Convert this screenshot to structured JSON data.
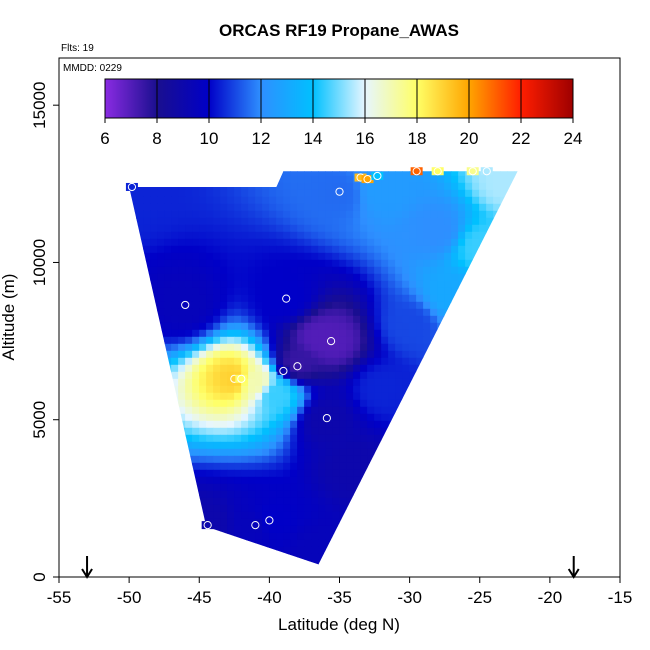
{
  "chart_data": {
    "type": "heatmap",
    "title": "ORCAS RF19 Propane_AWAS",
    "flights_label": "Flts: 19",
    "date_label": "MMDD: 0229",
    "xlabel": "Latitude (deg N)",
    "ylabel": "Altitude (m)",
    "xlim": [
      -55,
      -15
    ],
    "ylim": [
      0,
      16500
    ],
    "xticks": [
      -55,
      -50,
      -45,
      -40,
      -35,
      -30,
      -25,
      -20,
      -15
    ],
    "yticks": [
      0,
      5000,
      10000,
      15000
    ],
    "colorbar": {
      "range": [
        6,
        24
      ],
      "ticks": [
        6,
        8,
        10,
        12,
        14,
        16,
        18,
        20,
        22,
        24
      ],
      "colors": [
        "#8a2be2",
        "#1a0f8f",
        "#0000c8",
        "#2e8fff",
        "#00c0ff",
        "#e6f6ff",
        "#ffff66",
        "#ffa500",
        "#ff1e00",
        "#9e0000"
      ]
    },
    "arrows_lat": [
      -53,
      -18.3
    ],
    "domain_polygon": [
      {
        "lat": -50.0,
        "alt": 12400
      },
      {
        "lat": -39.5,
        "alt": 12400
      },
      {
        "lat": -39.0,
        "alt": 12900
      },
      {
        "lat": -22.3,
        "alt": 12900
      },
      {
        "lat": -36.5,
        "alt": 400
      },
      {
        "lat": -44.5,
        "alt": 1600
      }
    ],
    "fit_points": [
      {
        "lat": -50.0,
        "alt": 12400,
        "value": 10.5
      },
      {
        "lat": -46.0,
        "alt": 8650,
        "value": 9.5
      },
      {
        "lat": -38.8,
        "alt": 8850,
        "value": 10.0
      },
      {
        "lat": -35.5,
        "alt": 7500,
        "value": 7.0
      },
      {
        "lat": -38.0,
        "alt": 6800,
        "value": 7.5
      },
      {
        "lat": -36.5,
        "alt": 7600,
        "value": 7.0
      },
      {
        "lat": -42.5,
        "alt": 6300,
        "value": 19.0
      },
      {
        "lat": -41.0,
        "alt": 6200,
        "value": 17.0
      },
      {
        "lat": -39.5,
        "alt": 5800,
        "value": 14.5
      },
      {
        "lat": -36.0,
        "alt": 5000,
        "value": 9.0
      },
      {
        "lat": -44.5,
        "alt": 1650,
        "value": 9.0
      },
      {
        "lat": -41.0,
        "alt": 1650,
        "value": 9.5
      },
      {
        "lat": -40.0,
        "alt": 1800,
        "value": 10.0
      },
      {
        "lat": -36.5,
        "alt": 800,
        "value": 9.5
      },
      {
        "lat": -35.0,
        "alt": 12200,
        "value": 11.5
      },
      {
        "lat": -32.0,
        "alt": 12300,
        "value": 12.5
      },
      {
        "lat": -28.0,
        "alt": 11000,
        "value": 12.0
      },
      {
        "lat": -25.0,
        "alt": 10500,
        "value": 14.5
      },
      {
        "lat": -23.0,
        "alt": 12600,
        "value": 15.5
      },
      {
        "lat": -27.0,
        "alt": 9000,
        "value": 13.0
      },
      {
        "lat": -30.0,
        "alt": 8000,
        "value": 11.0
      },
      {
        "lat": -32.0,
        "alt": 6000,
        "value": 10.5
      },
      {
        "lat": -34.0,
        "alt": 3500,
        "value": 9.0
      }
    ],
    "samples": [
      {
        "lat": -49.8,
        "alt": 12400,
        "value": 10.5
      },
      {
        "lat": -46.0,
        "alt": 8650,
        "value": 9.5
      },
      {
        "lat": -38.8,
        "alt": 8850,
        "value": 10.0
      },
      {
        "lat": -35.6,
        "alt": 7500,
        "value": 7.0
      },
      {
        "lat": -38.0,
        "alt": 6700,
        "value": 7.5
      },
      {
        "lat": -39.0,
        "alt": 6550,
        "value": 9.0
      },
      {
        "lat": -42.5,
        "alt": 6300,
        "value": 19.0
      },
      {
        "lat": -42.0,
        "alt": 6300,
        "value": 18.0
      },
      {
        "lat": -35.9,
        "alt": 5050,
        "value": 9.0
      },
      {
        "lat": -44.4,
        "alt": 1650,
        "value": 9.0
      },
      {
        "lat": -41.0,
        "alt": 1650,
        "value": 9.5
      },
      {
        "lat": -40.0,
        "alt": 1800,
        "value": 10.0
      },
      {
        "lat": -35.0,
        "alt": 12250,
        "value": 11.5
      },
      {
        "lat": -33.5,
        "alt": 12700,
        "value": 19.5
      },
      {
        "lat": -33.0,
        "alt": 12650,
        "value": 20.0
      },
      {
        "lat": -32.3,
        "alt": 12750,
        "value": 14.0
      },
      {
        "lat": -29.5,
        "alt": 12900,
        "value": 21.0
      },
      {
        "lat": -28.0,
        "alt": 12900,
        "value": 18.0
      },
      {
        "lat": -25.5,
        "alt": 12900,
        "value": 17.5
      },
      {
        "lat": -24.5,
        "alt": 12900,
        "value": 15.5
      }
    ]
  }
}
